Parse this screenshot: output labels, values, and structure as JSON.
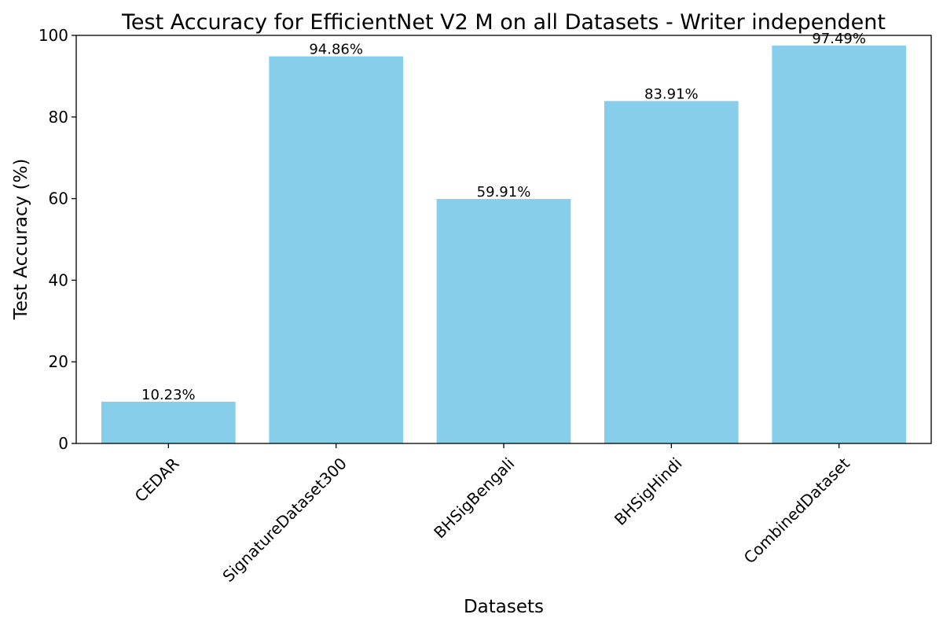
{
  "chart_data": {
    "type": "bar",
    "title": "Test Accuracy for EfficientNet V2 M on all Datasets - Writer independent",
    "xlabel": "Datasets",
    "ylabel": "Test Accuracy (%)",
    "categories": [
      "CEDAR",
      "SignatureDataset300",
      "BHSigBengali",
      "BHSigHindi",
      "CombinedDataset"
    ],
    "values": [
      10.23,
      94.86,
      59.91,
      83.91,
      97.49
    ],
    "data_labels": [
      "10.23%",
      "94.86%",
      "59.91%",
      "83.91%",
      "97.49%"
    ],
    "ylim": [
      0,
      100
    ],
    "yticks": [
      0,
      20,
      40,
      60,
      80,
      100
    ],
    "grid": false,
    "legend": "none",
    "bar_color": "#87CEEB",
    "xtick_rotation": "45 degrees, right-aligned"
  }
}
